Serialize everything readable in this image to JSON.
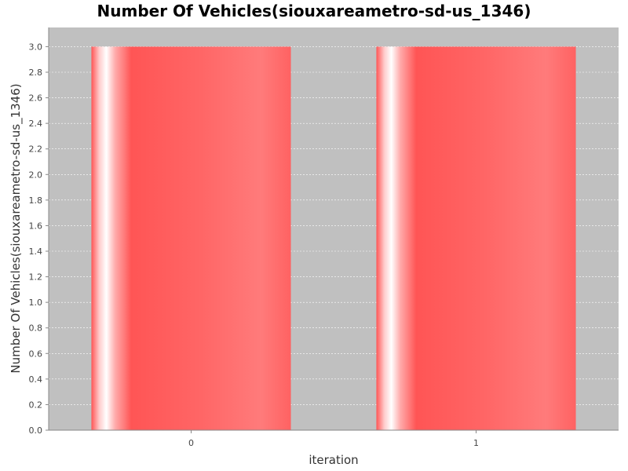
{
  "chart_data": {
    "type": "bar",
    "title": "Number Of Vehicles(siouxareametro-sd-us_1346)",
    "xlabel": "iteration",
    "ylabel": "Number Of Vehicles(siouxareametro-sd-us_1346)",
    "categories": [
      "0",
      "1"
    ],
    "series": [
      {
        "name": "Number Of Vehicles",
        "values": [
          3.0,
          3.0
        ]
      }
    ],
    "ylim": [
      0,
      3.15
    ],
    "yticks": [
      "0.0",
      "0.2",
      "0.4",
      "0.6",
      "0.8",
      "1.0",
      "1.2",
      "1.4",
      "1.6",
      "1.8",
      "2.0",
      "2.2",
      "2.4",
      "2.6",
      "2.8",
      "3.0"
    ],
    "grid": true,
    "legend": "none",
    "colors": {
      "plot_background": "#c0c0c0",
      "bar_base": "#ff5555",
      "bar_highlight": "#ffffff",
      "grid": "#ffffff"
    }
  }
}
